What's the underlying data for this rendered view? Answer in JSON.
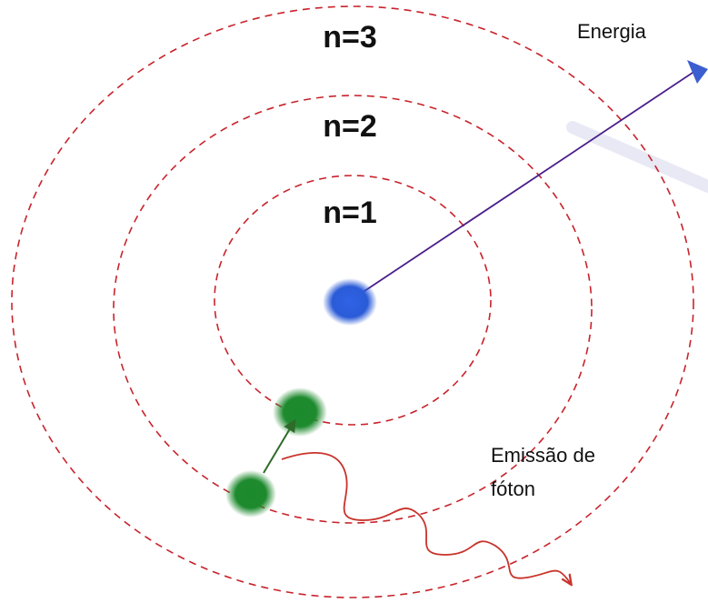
{
  "diagram": {
    "levels": [
      {
        "label": "n=1"
      },
      {
        "label": "n=2"
      },
      {
        "label": "n=3"
      }
    ],
    "energy_label": "Energia",
    "emission_label_line1": "Emissão de",
    "emission_label_line2": "fóton",
    "colors": {
      "orbit": "#c8232b",
      "nucleus": "#2a5bd7",
      "electron": "#1e8a2e",
      "energy_arrow": "#4a1f8a",
      "energy_arrowhead": "#3b5fd1",
      "transition_arrow": "#2f6b2a",
      "photon_wave": "#c8332b"
    }
  }
}
